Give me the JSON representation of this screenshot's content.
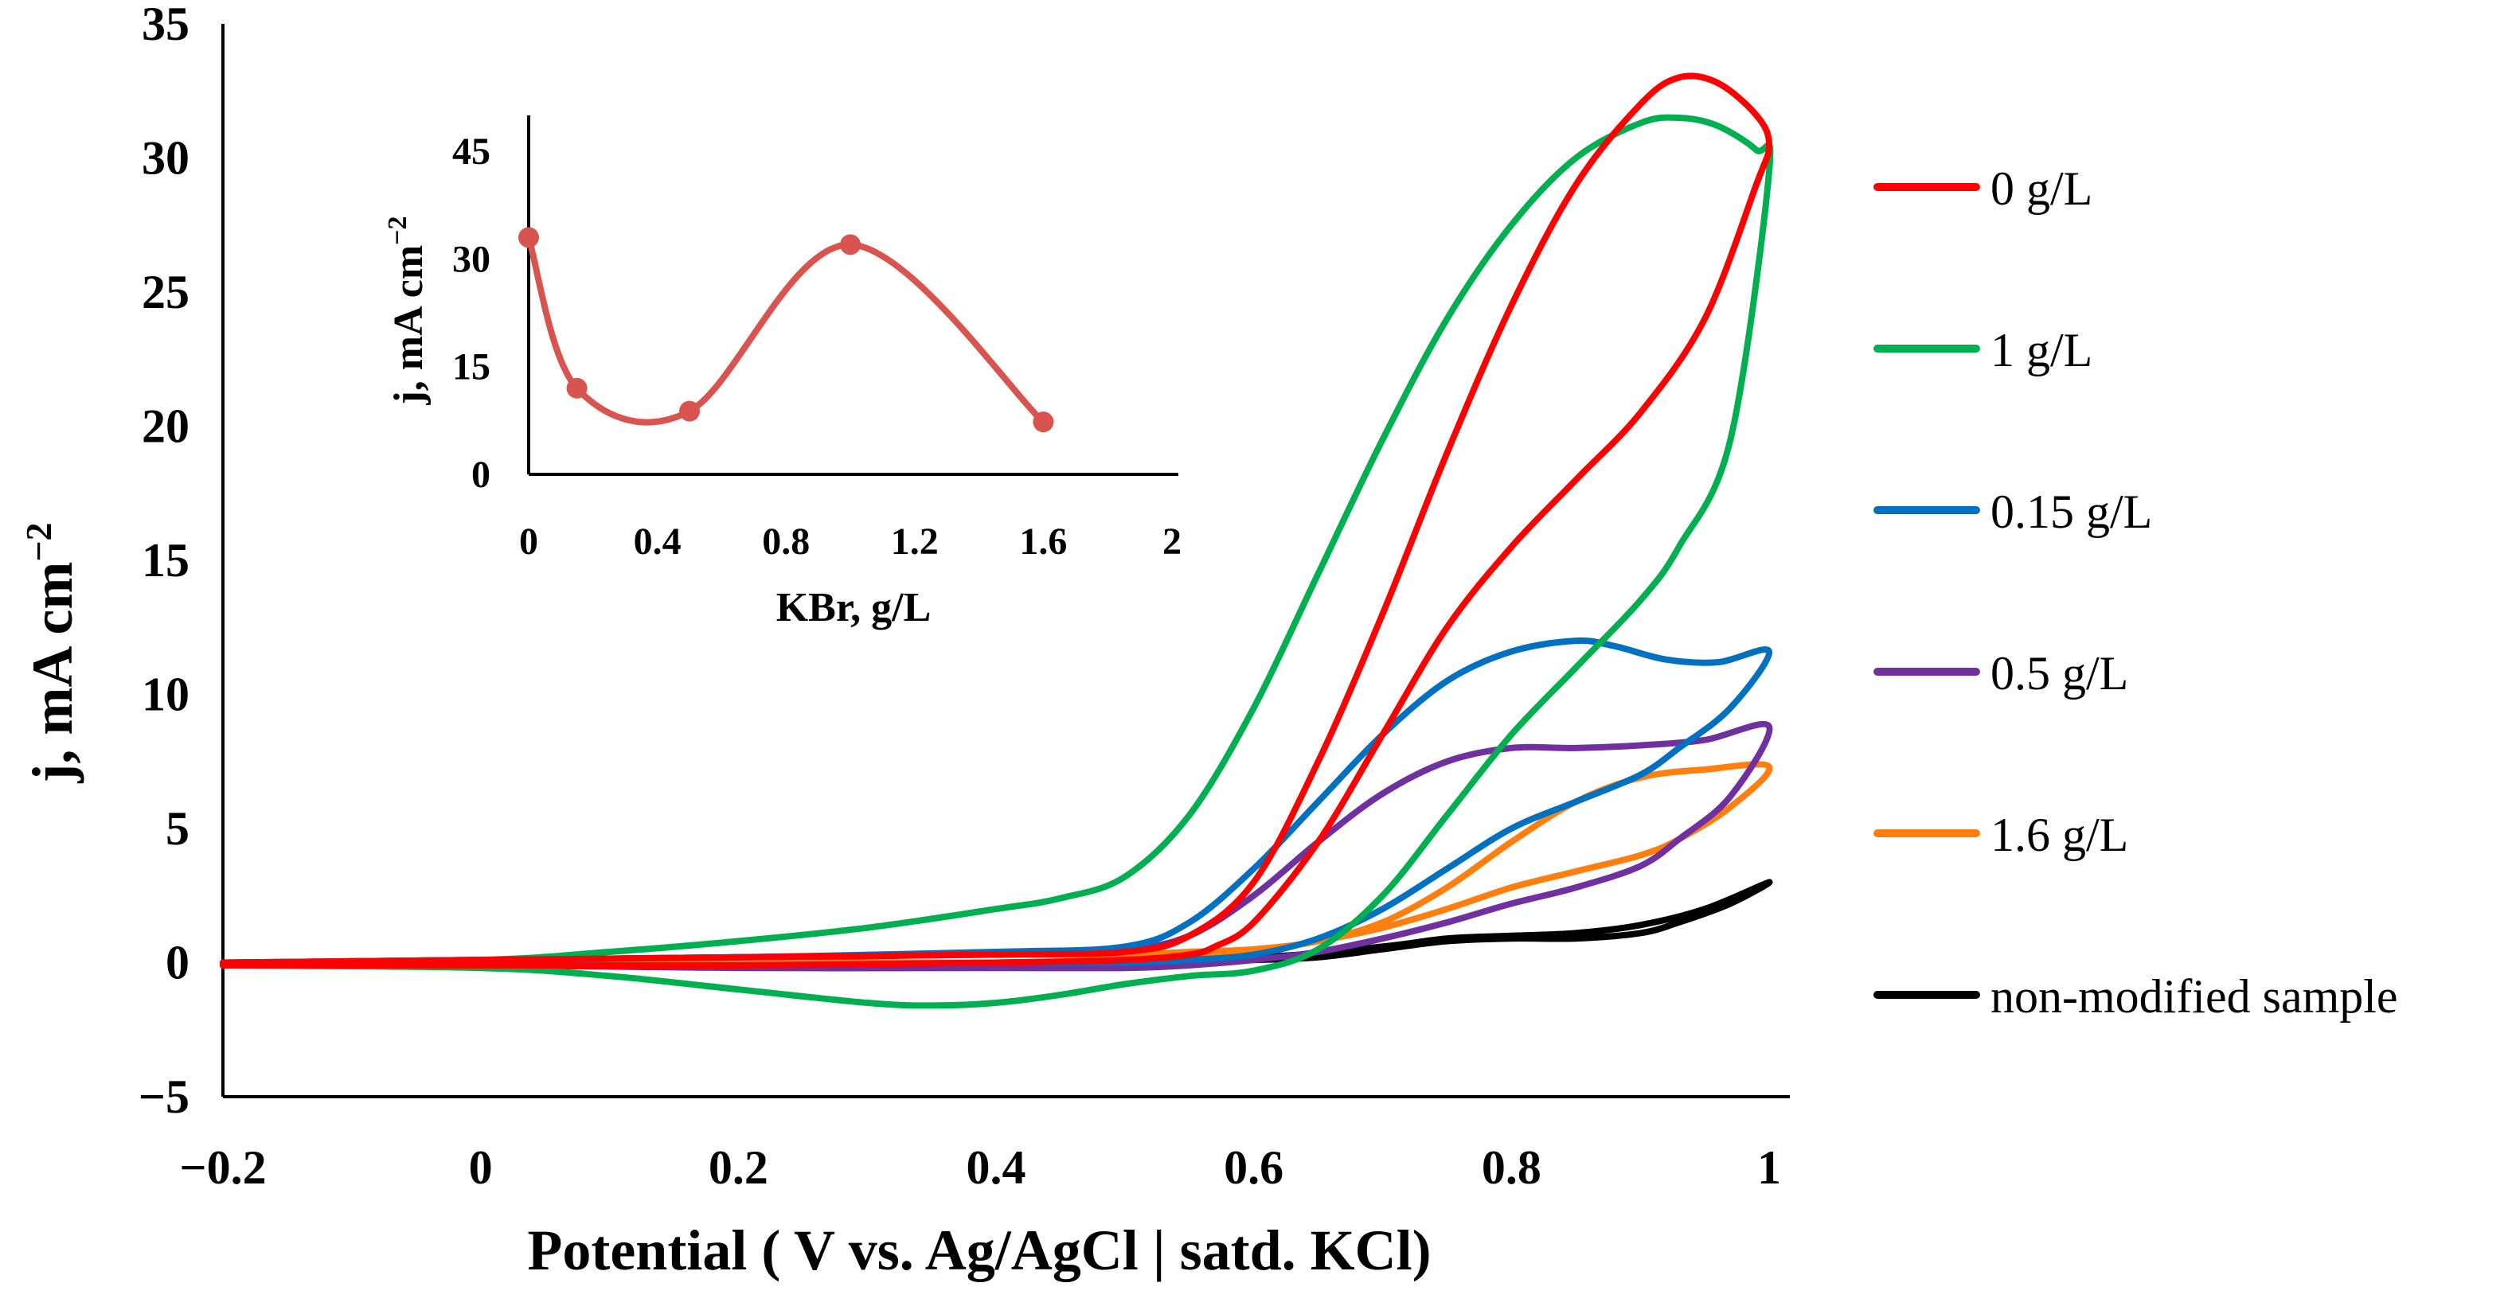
{
  "chart_data": {
    "type": "line",
    "title": "",
    "xlabel": "Potential ( V vs. Ag/AgCl | satd. KCl)",
    "ylabel": "j, mA cm",
    "ylabel_sup": "−2",
    "xlim": [
      -0.2,
      1.0
    ],
    "ylim": [
      -5,
      35
    ],
    "x_ticks": [
      -0.2,
      0,
      0.2,
      0.4,
      0.6,
      0.8,
      1.0
    ],
    "x_tick_labels": [
      "−0.2",
      "0",
      "0.2",
      "0.4",
      "0.6",
      "0.8",
      "1"
    ],
    "y_ticks": [
      -5,
      0,
      5,
      10,
      15,
      20,
      25,
      30,
      35
    ],
    "y_tick_labels": [
      "−5",
      "0",
      "5",
      "10",
      "15",
      "20",
      "25",
      "30",
      "35"
    ],
    "grid": false,
    "legend_position": "right",
    "series": [
      {
        "name": "0 g/L",
        "color": "#FF0000",
        "x": [
          -0.2,
          0.0,
          0.2,
          0.4,
          0.5,
          0.55,
          0.6,
          0.65,
          0.7,
          0.75,
          0.8,
          0.85,
          0.9,
          0.93,
          0.96,
          0.99,
          1.0,
          0.99,
          0.95,
          0.9,
          0.85,
          0.8,
          0.75,
          0.7,
          0.65,
          0.6,
          0.57,
          0.55,
          0.5,
          0.4,
          0.2,
          0.0,
          -0.2
        ],
        "y": [
          0.0,
          0.1,
          0.2,
          0.3,
          0.4,
          1.0,
          3.0,
          7.5,
          13.0,
          19.0,
          24.5,
          29.0,
          32.0,
          33.0,
          32.8,
          31.6,
          30.5,
          29.0,
          24.0,
          20.5,
          18.0,
          15.5,
          12.5,
          8.5,
          4.5,
          1.5,
          0.6,
          0.3,
          0.1,
          0.0,
          -0.1,
          -0.1,
          -0.1
        ]
      },
      {
        "name": "1 g/L",
        "color": "#00B050",
        "x": [
          -0.2,
          0.0,
          0.1,
          0.2,
          0.3,
          0.4,
          0.45,
          0.5,
          0.55,
          0.6,
          0.65,
          0.7,
          0.75,
          0.8,
          0.85,
          0.9,
          0.93,
          0.96,
          0.99,
          1.0,
          0.97,
          0.93,
          0.9,
          0.85,
          0.8,
          0.75,
          0.7,
          0.65,
          0.6,
          0.55,
          0.5,
          0.45,
          0.4,
          0.35,
          0.3,
          0.2,
          0.1,
          0.0,
          -0.2
        ],
        "y": [
          0.0,
          0.1,
          0.4,
          0.8,
          1.3,
          2.0,
          2.4,
          3.2,
          5.5,
          9.5,
          14.5,
          19.5,
          24.0,
          27.5,
          30.0,
          31.3,
          31.5,
          31.2,
          30.3,
          29.5,
          19.5,
          15.5,
          13.5,
          11.0,
          8.5,
          5.5,
          2.5,
          0.5,
          -0.3,
          -0.5,
          -0.8,
          -1.2,
          -1.5,
          -1.6,
          -1.5,
          -1.0,
          -0.5,
          -0.2,
          -0.1
        ]
      },
      {
        "name": "0.15 g/L",
        "color": "#0070C0",
        "x": [
          -0.2,
          0.0,
          0.2,
          0.4,
          0.5,
          0.55,
          0.6,
          0.65,
          0.7,
          0.75,
          0.8,
          0.85,
          0.88,
          0.92,
          0.96,
          1.0,
          0.97,
          0.93,
          0.9,
          0.85,
          0.8,
          0.75,
          0.7,
          0.65,
          0.6,
          0.55,
          0.5,
          0.4,
          0.2,
          0.0,
          -0.2
        ],
        "y": [
          0.0,
          0.1,
          0.2,
          0.4,
          0.6,
          1.5,
          3.5,
          6.0,
          8.5,
          10.5,
          11.6,
          12.0,
          11.8,
          11.3,
          11.2,
          11.6,
          9.5,
          8.0,
          7.0,
          6.0,
          5.0,
          3.5,
          2.0,
          0.9,
          0.3,
          0.1,
          0.0,
          0.0,
          -0.1,
          -0.1,
          -0.1
        ]
      },
      {
        "name": "0.5 g/L",
        "color": "#7030A0",
        "x": [
          -0.2,
          0.0,
          0.2,
          0.4,
          0.5,
          0.55,
          0.6,
          0.65,
          0.7,
          0.75,
          0.8,
          0.85,
          0.9,
          0.95,
          1.0,
          0.97,
          0.93,
          0.9,
          0.85,
          0.8,
          0.75,
          0.7,
          0.65,
          0.6,
          0.55,
          0.5,
          0.4,
          0.2,
          0.0,
          -0.2
        ],
        "y": [
          0.0,
          0.1,
          0.2,
          0.3,
          0.5,
          1.0,
          2.5,
          4.5,
          6.3,
          7.5,
          8.0,
          8.0,
          8.1,
          8.3,
          8.8,
          6.2,
          4.6,
          3.6,
          2.8,
          2.2,
          1.5,
          0.9,
          0.4,
          0.1,
          -0.1,
          -0.2,
          -0.2,
          -0.2,
          -0.1,
          -0.1
        ]
      },
      {
        "name": "1.6 g/L",
        "color": "#FF7F0E",
        "x": [
          -0.2,
          0.0,
          0.2,
          0.4,
          0.5,
          0.55,
          0.6,
          0.65,
          0.7,
          0.75,
          0.8,
          0.85,
          0.9,
          0.95,
          1.0,
          0.97,
          0.93,
          0.9,
          0.85,
          0.8,
          0.75,
          0.7,
          0.65,
          0.6,
          0.55,
          0.5,
          0.4,
          0.2,
          0.0,
          -0.2
        ],
        "y": [
          0.0,
          0.1,
          0.2,
          0.3,
          0.3,
          0.4,
          0.5,
          0.8,
          1.5,
          2.8,
          4.5,
          6.0,
          6.9,
          7.2,
          7.3,
          5.8,
          4.6,
          4.0,
          3.4,
          2.8,
          2.0,
          1.3,
          0.8,
          0.4,
          0.2,
          0.1,
          0.0,
          0.0,
          0.0,
          0.0
        ]
      },
      {
        "name": "non-modified sample",
        "color": "#000000",
        "x": [
          -0.2,
          0.0,
          0.2,
          0.4,
          0.6,
          0.7,
          0.75,
          0.8,
          0.85,
          0.9,
          0.95,
          1.0,
          0.97,
          0.93,
          0.9,
          0.85,
          0.8,
          0.75,
          0.7,
          0.65,
          0.6,
          0.5,
          0.4,
          0.2,
          0.0,
          -0.2
        ],
        "y": [
          0.0,
          0.0,
          0.0,
          0.0,
          0.2,
          0.6,
          0.9,
          1.0,
          1.1,
          1.4,
          2.0,
          3.0,
          2.2,
          1.5,
          1.1,
          0.9,
          0.9,
          0.8,
          0.5,
          0.2,
          0.1,
          0.0,
          0.0,
          0.0,
          0.0,
          0.0
        ]
      }
    ],
    "inset": {
      "type": "line",
      "xlabel": "KBr, g/L",
      "ylabel": "j, mA cm",
      "ylabel_sup": "−2",
      "xlim": [
        0,
        2
      ],
      "ylim": [
        0,
        50
      ],
      "x_ticks": [
        0,
        0.4,
        0.8,
        1.2,
        1.6,
        2
      ],
      "x_tick_labels": [
        "0",
        "0.4",
        "0.8",
        "1.2",
        "1.6",
        "2"
      ],
      "y_ticks": [
        0,
        15,
        30,
        45
      ],
      "y_tick_labels": [
        "0",
        "15",
        "30",
        "45"
      ],
      "color": "#D9534F",
      "x": [
        0,
        0.15,
        0.5,
        1.0,
        1.6
      ],
      "y": [
        33,
        12,
        8.8,
        32,
        7.3
      ]
    }
  }
}
